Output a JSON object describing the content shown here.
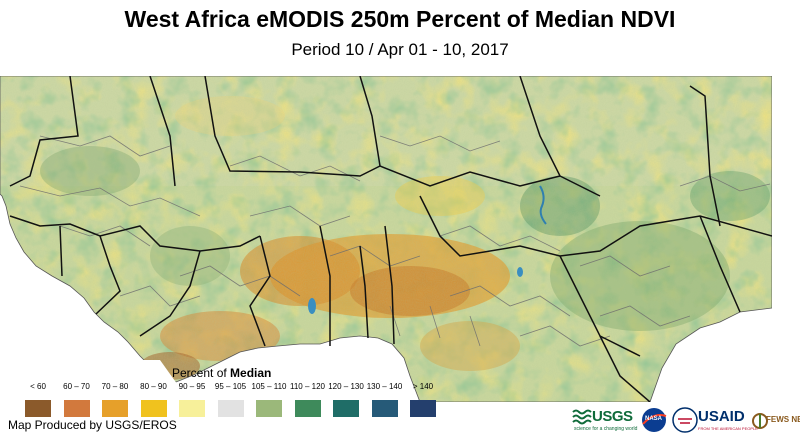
{
  "title": "West Africa eMODIS 250m Percent of Median NDVI",
  "subtitle": "Period 10 / Apr 01 - 10, 2017",
  "legend": {
    "title_prefix": "Percent of",
    "title_bold": "Median",
    "classes": [
      {
        "label": "< 60",
        "color": "#8b5a2b"
      },
      {
        "label": "60 – 70",
        "color": "#d2793d"
      },
      {
        "label": "70 – 80",
        "color": "#e6a02a"
      },
      {
        "label": "80 – 90",
        "color": "#f0c21e"
      },
      {
        "label": "90 – 95",
        "color": "#f7f09a"
      },
      {
        "label": "95 – 105",
        "color": "#e2e2e2"
      },
      {
        "label": "105 – 110",
        "color": "#9bb87a"
      },
      {
        "label": "110 – 120",
        "color": "#3e8a5b"
      },
      {
        "label": "120 – 130",
        "color": "#1f6d67"
      },
      {
        "label": "130 – 140",
        "color": "#265a78"
      },
      {
        "label": "> 140",
        "color": "#243f6d"
      }
    ]
  },
  "credit": "Map Produced by USGS/EROS",
  "logos": {
    "usgs": "USGS",
    "usgs_tagline": "science for a changing world",
    "nasa": "NASA",
    "usaid": "USAID",
    "usaid_tagline": "FROM THE AMERICAN PEOPLE",
    "fews": "FEWS NET"
  }
}
